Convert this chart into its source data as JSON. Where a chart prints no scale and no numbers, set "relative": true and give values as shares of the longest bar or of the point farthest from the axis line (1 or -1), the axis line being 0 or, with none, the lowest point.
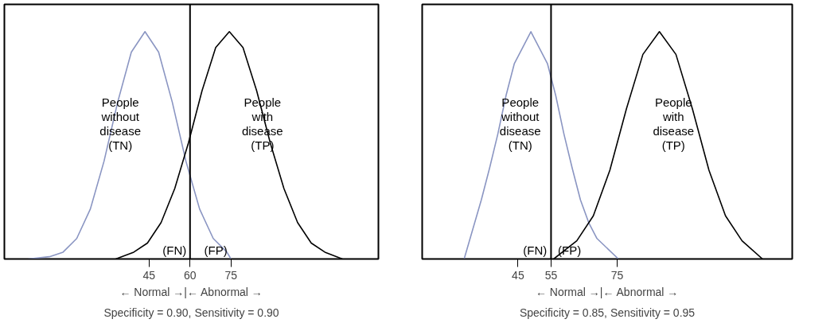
{
  "chart_data": [
    {
      "type": "line",
      "relative": true,
      "xlim": [
        -8,
        129
      ],
      "xticks": [
        45,
        60,
        75
      ],
      "tick_labels": "x",
      "grid": false,
      "marker": "none",
      "line_style": "solid",
      "xlabel": "← Normal →|← Abnormal →",
      "series": [
        {
          "color": "#8a95c2",
          "x": [
            0.7,
            8.5,
            13.5,
            18.5,
            23.5,
            28.5,
            33.5,
            38.5,
            43.5,
            48.5,
            53.5,
            58.5,
            63.5,
            68.5,
            73.5,
            75
          ],
          "values": [
            0,
            0.01,
            0.03,
            0.09,
            0.22,
            0.43,
            0.69,
            0.91,
            1,
            0.91,
            0.69,
            0.43,
            0.22,
            0.09,
            0.03,
            0
          ]
        },
        {
          "color": "#000000",
          "x": [
            32.8,
            39.4,
            44.4,
            49.4,
            54.4,
            59.4,
            64.4,
            69.4,
            74.4,
            79.4,
            84.4,
            89.4,
            94.4,
            99.4,
            104.4,
            109.4,
            115.8
          ],
          "values": [
            0,
            0.03,
            0.07,
            0.16,
            0.31,
            0.51,
            0.74,
            0.93,
            1,
            0.93,
            0.74,
            0.51,
            0.31,
            0.16,
            0.07,
            0.03,
            0
          ]
        }
      ],
      "ref_lines": [
        {
          "axis": "x",
          "value": 60,
          "color": "#000000"
        }
      ],
      "annotations": [
        "People\nwithout\ndisease\n(TN)",
        "People\nwith\ndisease\n(TP)",
        "(FN)",
        "(FP)",
        "Specificity = 0.90, Sensitivity = 0.90"
      ]
    },
    {
      "type": "line",
      "relative": true,
      "xlim": [
        16,
        128
      ],
      "xticks": [
        45,
        55,
        75
      ],
      "tick_labels": "x",
      "grid": false,
      "marker": "none",
      "line_style": "solid",
      "xlabel": "← Normal →|← Abnormal →",
      "series": [
        {
          "color": "#8a95c2",
          "x": [
            28.7,
            33.9,
            36.4,
            38.9,
            41.4,
            43.9,
            48.9,
            53.9,
            56.4,
            58.9,
            61.4,
            63.9,
            66.4,
            68.9,
            75.4
          ],
          "values": [
            0,
            0.26,
            0.4,
            0.55,
            0.72,
            0.86,
            1,
            0.86,
            0.72,
            0.55,
            0.4,
            0.26,
            0.16,
            0.09,
            0
          ]
        },
        {
          "color": "#000000",
          "x": [
            55.8,
            62.8,
            67.8,
            72.8,
            77.8,
            82.8,
            87.8,
            92.8,
            97.8,
            102.8,
            107.8,
            112.8,
            119
          ],
          "values": [
            0,
            0.08,
            0.19,
            0.39,
            0.66,
            0.9,
            1,
            0.9,
            0.66,
            0.39,
            0.19,
            0.08,
            0
          ]
        }
      ],
      "ref_lines": [
        {
          "axis": "x",
          "value": 55,
          "color": "#000000"
        }
      ],
      "annotations": [
        "People\nwithout\ndisease\n(TN)",
        "People\nwith\ndisease\n(TP)",
        "(FN)",
        "(FP)",
        "Specificity = 0.85, Sensitivity = 0.95"
      ]
    }
  ]
}
